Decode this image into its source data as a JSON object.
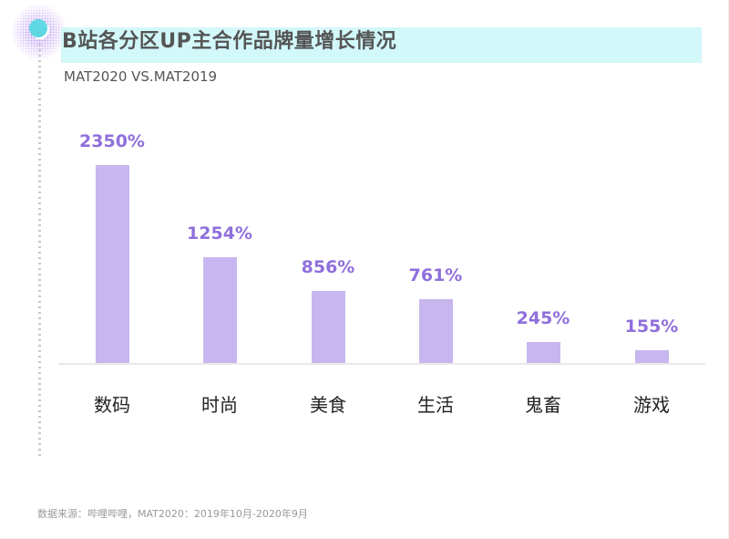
{
  "header": {
    "title": "B站各分区UP主合作品牌量增长情况",
    "subtitle": "MAT2020 VS.MAT2019"
  },
  "footer": {
    "source": "数据来源：哔哩哔哩，MAT2020：2019年10月-2020年9月"
  },
  "colors": {
    "bar": "#c8b6f0",
    "value_label": "#8f6fdc",
    "title_band": "#d2f8fa",
    "accent_dot": "#5fd8e4"
  },
  "chart_data": {
    "type": "bar",
    "title": "B站各分区UP主合作品牌量增长情况",
    "subtitle": "MAT2020 VS.MAT2019",
    "xlabel": "",
    "ylabel": "",
    "categories": [
      "数码",
      "时尚",
      "美食",
      "生活",
      "鬼畜",
      "游戏"
    ],
    "values": [
      2350,
      1254,
      856,
      761,
      245,
      155
    ],
    "value_labels": [
      "2350%",
      "1254%",
      "856%",
      "761%",
      "245%",
      "155%"
    ],
    "unit": "%",
    "grid": false,
    "legend": null,
    "note": "数据来源：哔哩哔哩，MAT2020：2019年10月-2020年9月"
  }
}
